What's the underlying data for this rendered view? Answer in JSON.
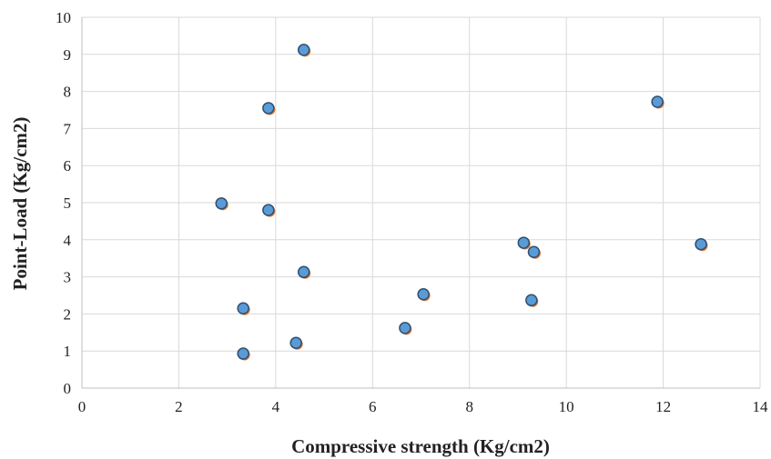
{
  "chart_data": {
    "type": "scatter",
    "title": "",
    "xlabel": "Compressive strength (Kg/cm2)",
    "ylabel": "Point-Load (Kg/cm2)",
    "xlim": [
      0,
      14
    ],
    "ylim": [
      0,
      10
    ],
    "x_ticks": [
      "0",
      "2",
      "4",
      "6",
      "8",
      "10",
      "12",
      "14"
    ],
    "y_ticks": [
      "0",
      "1",
      "2",
      "3",
      "4",
      "5",
      "6",
      "7",
      "8",
      "9",
      "10"
    ],
    "grid": true,
    "legend": "none",
    "marker_fill": "#5b9bd5",
    "marker_edge": "#2e4f73",
    "marker_shadow": "#ed7d31",
    "points": [
      {
        "x": 4.58,
        "y": 9.12
      },
      {
        "x": 3.85,
        "y": 7.55
      },
      {
        "x": 11.88,
        "y": 7.72
      },
      {
        "x": 2.88,
        "y": 4.98
      },
      {
        "x": 3.85,
        "y": 4.8
      },
      {
        "x": 9.12,
        "y": 3.92
      },
      {
        "x": 9.33,
        "y": 3.67
      },
      {
        "x": 12.78,
        "y": 3.88
      },
      {
        "x": 4.58,
        "y": 3.13
      },
      {
        "x": 7.05,
        "y": 2.53
      },
      {
        "x": 9.28,
        "y": 2.37
      },
      {
        "x": 3.33,
        "y": 2.15
      },
      {
        "x": 6.67,
        "y": 1.62
      },
      {
        "x": 4.42,
        "y": 1.22
      },
      {
        "x": 3.33,
        "y": 0.93
      }
    ]
  }
}
